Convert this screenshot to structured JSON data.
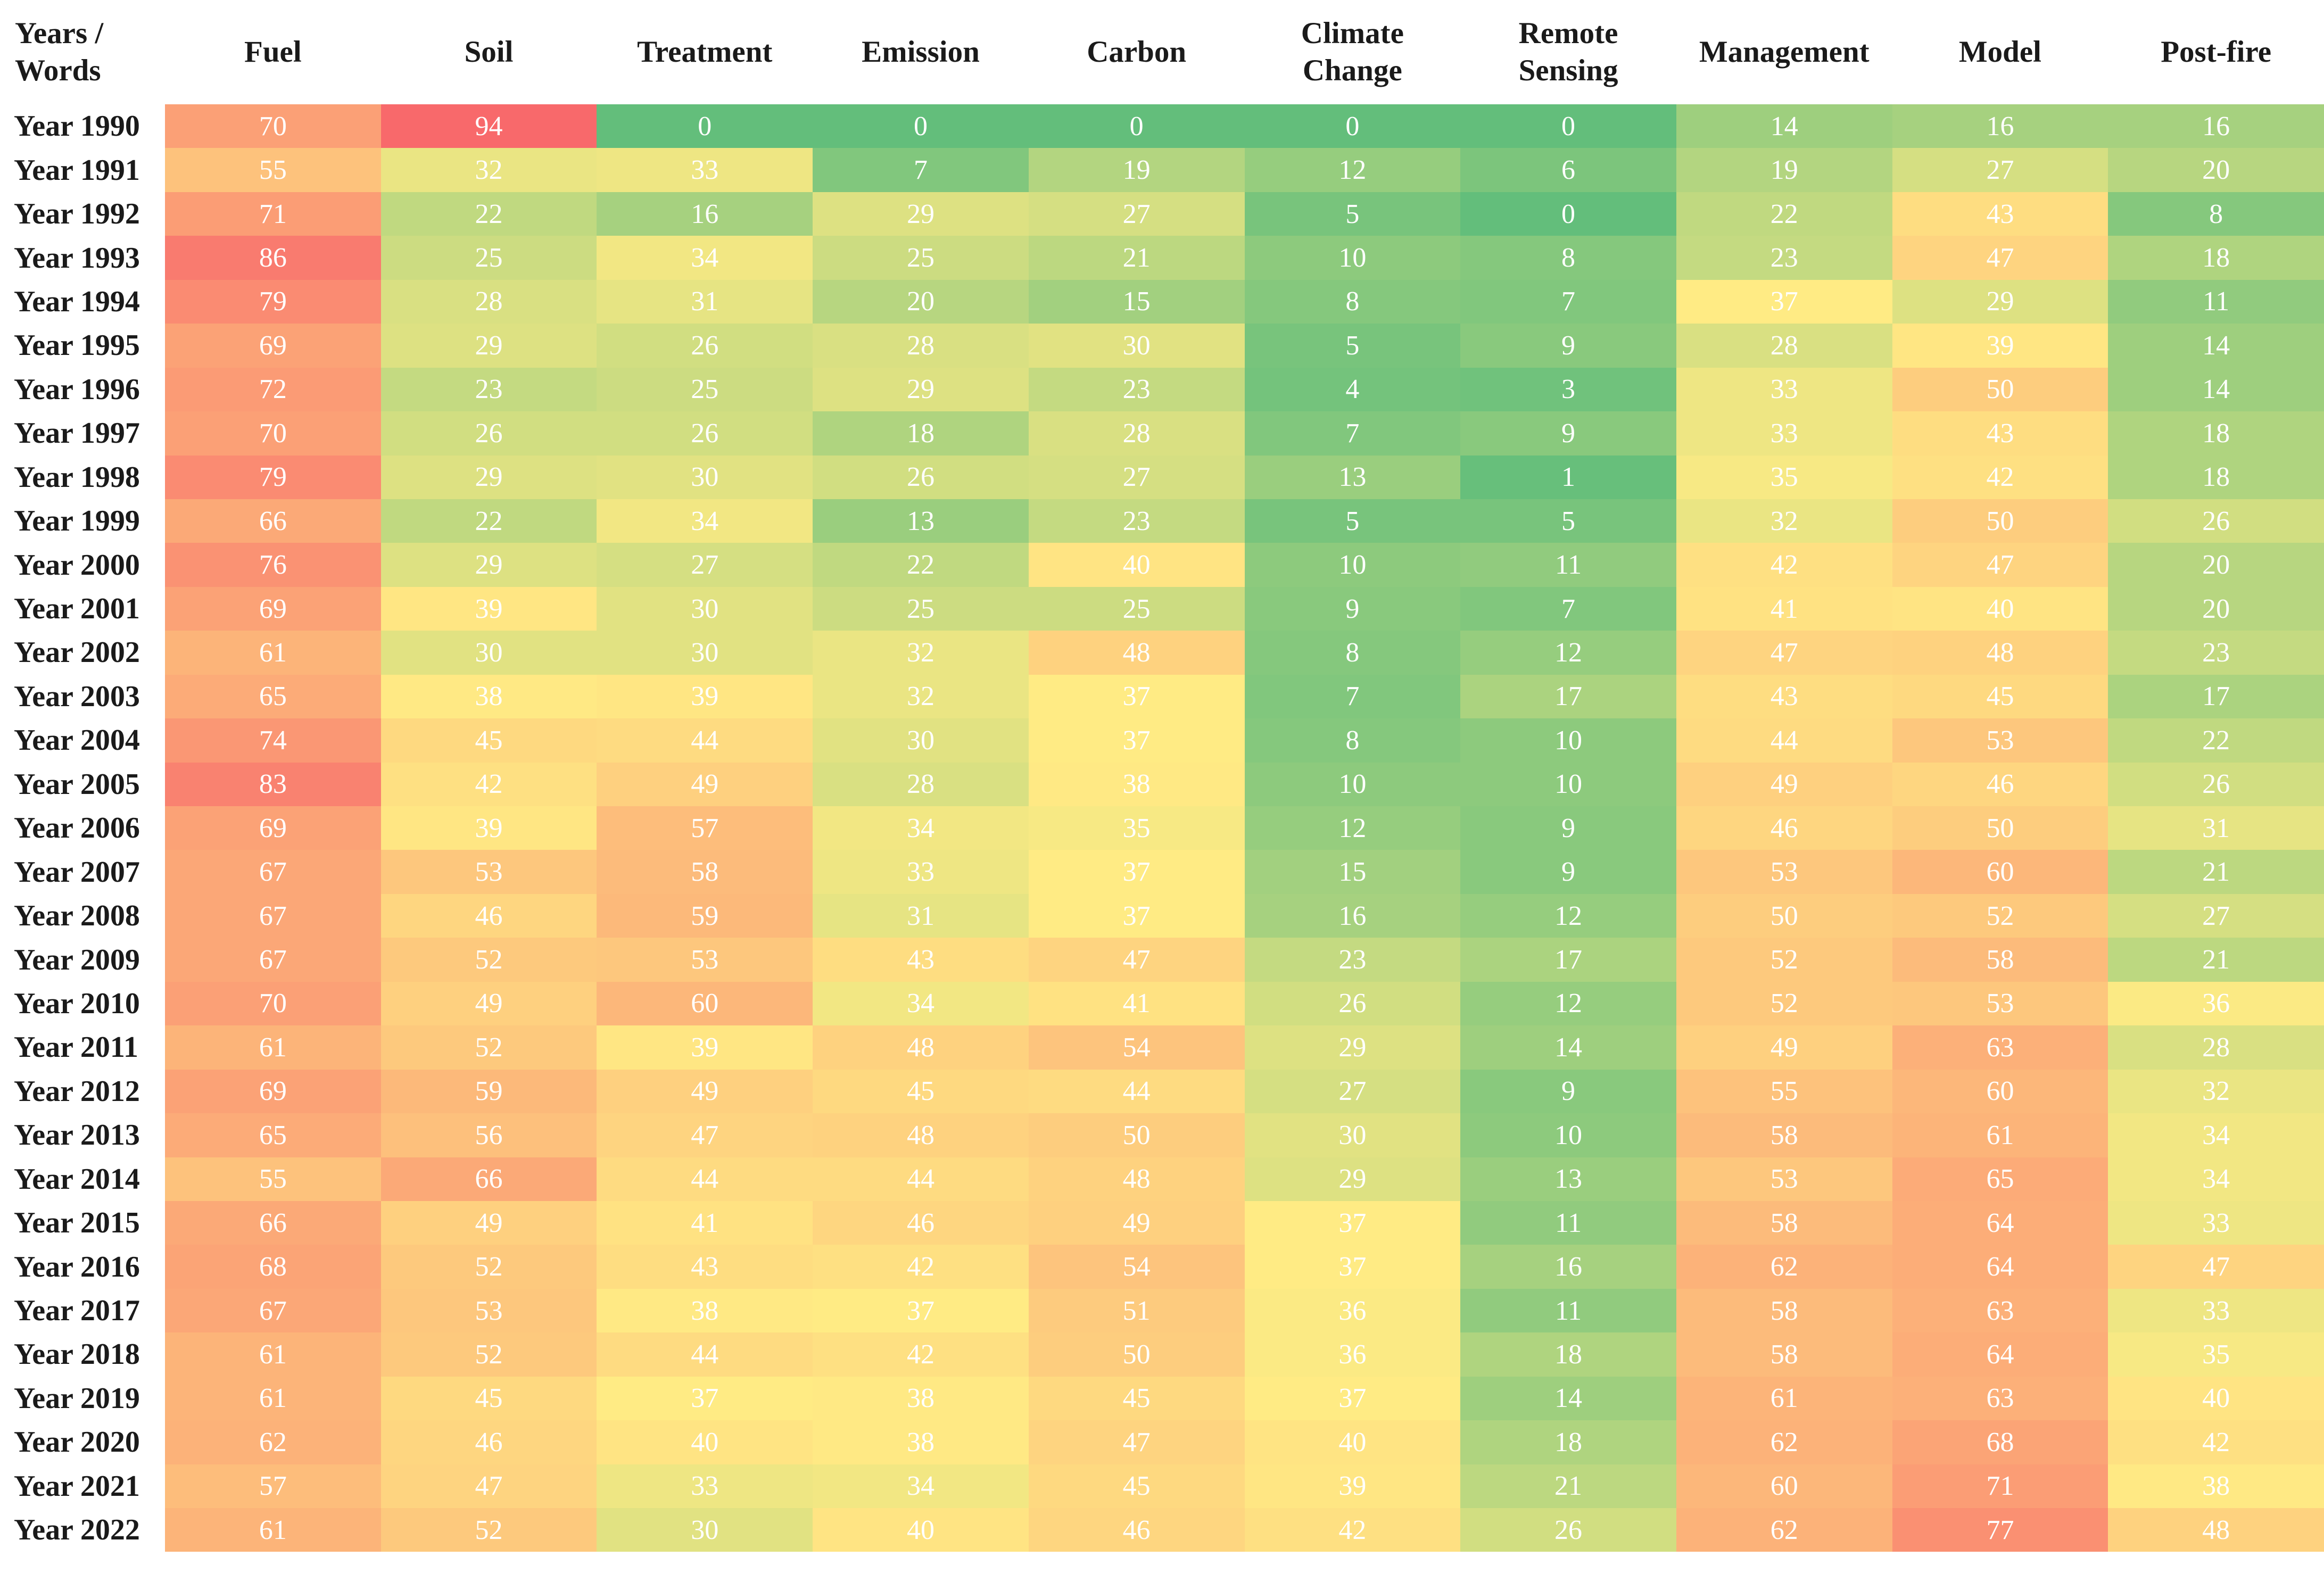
{
  "chart_data": {
    "type": "heatmap",
    "corner_label": "Years /\nWords",
    "x_labels": [
      "Fuel",
      "Soil",
      "Treatment",
      "Emission",
      "Carbon",
      "Climate Change",
      "Remote Sensing",
      "Management",
      "Model",
      "Post-fire"
    ],
    "y_labels": [
      "Year 1990",
      "Year 1991",
      "Year 1992",
      "Year 1993",
      "Year 1994",
      "Year 1995",
      "Year 1996",
      "Year 1997",
      "Year 1998",
      "Year 1999",
      "Year 2000",
      "Year 2001",
      "Year 2002",
      "Year 2003",
      "Year 2004",
      "Year 2005",
      "Year 2006",
      "Year 2007",
      "Year 2008",
      "Year 2009",
      "Year 2010",
      "Year 2011",
      "Year 2012",
      "Year 2013",
      "Year 2014",
      "Year 2015",
      "Year 2016",
      "Year 2017",
      "Year 2018",
      "Year 2019",
      "Year 2020",
      "Year 2021",
      "Year 2022"
    ],
    "values": [
      [
        70,
        94,
        0,
        0,
        0,
        0,
        0,
        14,
        16,
        16
      ],
      [
        55,
        32,
        33,
        7,
        19,
        12,
        6,
        19,
        27,
        20
      ],
      [
        71,
        22,
        16,
        29,
        27,
        5,
        0,
        22,
        43,
        8
      ],
      [
        86,
        25,
        34,
        25,
        21,
        10,
        8,
        23,
        47,
        18
      ],
      [
        79,
        28,
        31,
        20,
        15,
        8,
        7,
        37,
        29,
        11
      ],
      [
        69,
        29,
        26,
        28,
        30,
        5,
        9,
        28,
        39,
        14
      ],
      [
        72,
        23,
        25,
        29,
        23,
        4,
        3,
        33,
        50,
        14
      ],
      [
        70,
        26,
        26,
        18,
        28,
        7,
        9,
        33,
        43,
        18
      ],
      [
        79,
        29,
        30,
        26,
        27,
        13,
        1,
        35,
        42,
        18
      ],
      [
        66,
        22,
        34,
        13,
        23,
        5,
        5,
        32,
        50,
        26
      ],
      [
        76,
        29,
        27,
        22,
        40,
        10,
        11,
        42,
        47,
        20
      ],
      [
        69,
        39,
        30,
        25,
        25,
        9,
        7,
        41,
        40,
        20
      ],
      [
        61,
        30,
        30,
        32,
        48,
        8,
        12,
        47,
        48,
        23
      ],
      [
        65,
        38,
        39,
        32,
        37,
        7,
        17,
        43,
        45,
        17
      ],
      [
        74,
        45,
        44,
        30,
        37,
        8,
        10,
        44,
        53,
        22
      ],
      [
        83,
        42,
        49,
        28,
        38,
        10,
        10,
        49,
        46,
        26
      ],
      [
        69,
        39,
        57,
        34,
        35,
        12,
        9,
        46,
        50,
        31
      ],
      [
        67,
        53,
        58,
        33,
        37,
        15,
        9,
        53,
        60,
        21
      ],
      [
        67,
        46,
        59,
        31,
        37,
        16,
        12,
        50,
        52,
        27
      ],
      [
        67,
        52,
        53,
        43,
        47,
        23,
        17,
        52,
        58,
        21
      ],
      [
        70,
        49,
        60,
        34,
        41,
        26,
        12,
        52,
        53,
        36
      ],
      [
        61,
        52,
        39,
        48,
        54,
        29,
        14,
        49,
        63,
        28
      ],
      [
        69,
        59,
        49,
        45,
        44,
        27,
        9,
        55,
        60,
        32
      ],
      [
        65,
        56,
        47,
        48,
        50,
        30,
        10,
        58,
        61,
        34
      ],
      [
        55,
        66,
        44,
        44,
        48,
        29,
        13,
        53,
        65,
        34
      ],
      [
        66,
        49,
        41,
        46,
        49,
        37,
        11,
        58,
        64,
        33
      ],
      [
        68,
        52,
        43,
        42,
        54,
        37,
        16,
        62,
        64,
        47
      ],
      [
        67,
        53,
        38,
        37,
        51,
        36,
        11,
        58,
        63,
        33
      ],
      [
        61,
        52,
        44,
        42,
        50,
        36,
        18,
        58,
        64,
        35
      ],
      [
        61,
        45,
        37,
        38,
        45,
        37,
        14,
        61,
        63,
        40
      ],
      [
        62,
        46,
        40,
        38,
        47,
        40,
        18,
        62,
        68,
        42
      ],
      [
        57,
        47,
        33,
        34,
        45,
        39,
        21,
        60,
        71,
        38
      ],
      [
        61,
        52,
        30,
        40,
        46,
        42,
        26,
        62,
        77,
        48
      ]
    ],
    "color_scale": {
      "min": 0,
      "mid": 37,
      "max": 94,
      "min_color": "#63BE7B",
      "mid_color": "#FFEB84",
      "max_color": "#F8696B"
    },
    "cell_text_color": "#FFFFFF",
    "legend": "none",
    "grid_lines": "off"
  }
}
